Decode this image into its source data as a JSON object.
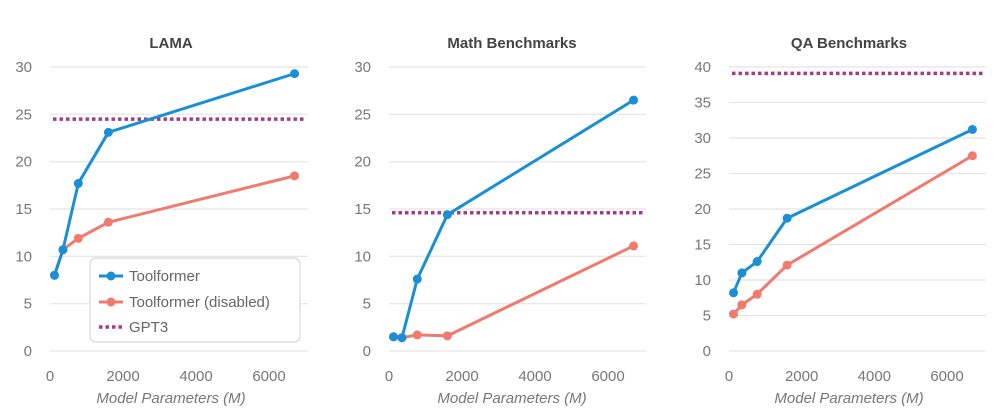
{
  "chart_data": [
    {
      "type": "line",
      "title": "LAMA",
      "xlabel": "Model Parameters (M)",
      "ylabel": "",
      "x": [
        124,
        355,
        775,
        1600,
        6700
      ],
      "xlim": [
        0,
        7000
      ],
      "ylim": [
        0,
        30
      ],
      "xticks": [
        0,
        2000,
        4000,
        6000
      ],
      "yticks": [
        0,
        5,
        10,
        15,
        20,
        25,
        30
      ],
      "grid": true,
      "legend": "bottom-right",
      "series": [
        {
          "name": "Toolformer",
          "color": "#1a8fd4",
          "values": [
            8.0,
            10.7,
            17.7,
            23.1,
            29.3
          ]
        },
        {
          "name": "Toolformer (disabled)",
          "color": "#f07a6e",
          "values": [
            8.0,
            10.7,
            11.9,
            13.6,
            18.5
          ]
        },
        {
          "name": "GPT3",
          "color": "#a63a8a",
          "style": "dotted",
          "constant": 24.5
        }
      ]
    },
    {
      "type": "line",
      "title": "Math Benchmarks",
      "xlabel": "Model Parameters (M)",
      "ylabel": "",
      "x": [
        124,
        355,
        775,
        1600,
        6700
      ],
      "xlim": [
        0,
        7000
      ],
      "ylim": [
        0,
        30
      ],
      "xticks": [
        0,
        2000,
        4000,
        6000
      ],
      "yticks": [
        0,
        5,
        10,
        15,
        20,
        25,
        30
      ],
      "grid": true,
      "series": [
        {
          "name": "Toolformer",
          "color": "#1a8fd4",
          "values": [
            1.5,
            1.4,
            7.6,
            14.4,
            26.5
          ]
        },
        {
          "name": "Toolformer (disabled)",
          "color": "#f07a6e",
          "values": [
            1.5,
            1.4,
            1.7,
            1.6,
            11.1
          ]
        },
        {
          "name": "GPT3",
          "color": "#a63a8a",
          "style": "dotted",
          "constant": 14.6
        }
      ]
    },
    {
      "type": "line",
      "title": "QA Benchmarks",
      "xlabel": "Model Parameters (M)",
      "ylabel": "",
      "x": [
        124,
        355,
        775,
        1600,
        6700
      ],
      "xlim": [
        0,
        7000
      ],
      "ylim": [
        0,
        40
      ],
      "xticks": [
        0,
        2000,
        4000,
        6000
      ],
      "yticks": [
        0,
        5,
        10,
        15,
        20,
        25,
        30,
        35,
        40
      ],
      "grid": true,
      "series": [
        {
          "name": "Toolformer",
          "color": "#1a8fd4",
          "values": [
            8.2,
            11.0,
            12.6,
            18.7,
            31.2
          ]
        },
        {
          "name": "Toolformer (disabled)",
          "color": "#f07a6e",
          "values": [
            5.2,
            6.5,
            8.0,
            12.1,
            27.5
          ]
        },
        {
          "name": "GPT3",
          "color": "#a63a8a",
          "style": "dotted",
          "constant": 39.1
        }
      ]
    }
  ]
}
